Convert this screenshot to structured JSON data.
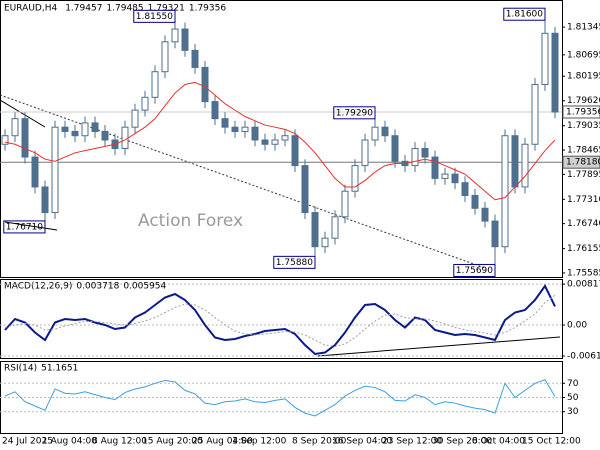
{
  "chart_data": [
    {
      "type": "candlestick",
      "title": "EURAUD,H4",
      "ohlc": [
        1.79457,
        1.79485,
        1.79321,
        1.79356
      ],
      "watermark": "Action Forex",
      "categories": [
        "24 Jul 2025",
        null,
        null,
        null,
        "1 Aug 04:00",
        null,
        null,
        null,
        null,
        "8 Aug 12:00",
        null,
        null,
        null,
        null,
        "15 Aug 20:00",
        null,
        null,
        null,
        null,
        "25 Aug 04:00",
        null,
        null,
        null,
        "1 Sep 12:00",
        null,
        null,
        null,
        null,
        null,
        "8 Sep 20:00",
        null,
        null,
        null,
        "16 Sep 04:00",
        null,
        null,
        null,
        null,
        "23 Sep 12:00",
        null,
        null,
        null,
        null,
        "30 Sep 20:00",
        null,
        null,
        null,
        "8 Oct 04:00",
        null,
        null,
        null,
        null,
        "15 Oct 12:00",
        null,
        null,
        null
      ],
      "open": [
        1.786,
        1.788,
        1.792,
        1.783,
        1.776,
        1.77,
        1.79,
        1.789,
        1.788,
        1.791,
        1.789,
        1.787,
        1.785,
        1.79,
        1.794,
        1.797,
        1.803,
        1.81,
        1.813,
        1.808,
        1.804,
        1.796,
        1.792,
        1.79,
        1.789,
        1.79,
        1.787,
        1.786,
        1.787,
        1.788,
        1.781,
        1.77,
        1.762,
        1.764,
        1.769,
        1.775,
        1.781,
        1.787,
        1.79,
        1.788,
        1.782,
        1.781,
        1.785,
        1.783,
        1.778,
        1.779,
        1.777,
        1.774,
        1.771,
        1.768,
        1.762,
        1.788,
        1.776,
        1.786,
        1.8,
        1.812
      ],
      "high": [
        1.7895,
        1.7935,
        1.7935,
        1.7845,
        1.7775,
        1.7915,
        1.7915,
        1.7905,
        1.7925,
        1.7925,
        1.7905,
        1.7885,
        1.7915,
        1.7955,
        1.7985,
        1.8045,
        1.8115,
        1.8155,
        1.8145,
        1.8095,
        1.8055,
        1.7975,
        1.7935,
        1.7915,
        1.7915,
        1.7915,
        1.7885,
        1.7885,
        1.7895,
        1.7895,
        1.7825,
        1.7715,
        1.7655,
        1.7705,
        1.7765,
        1.7825,
        1.7885,
        1.7929,
        1.7915,
        1.7895,
        1.7835,
        1.7865,
        1.7865,
        1.7845,
        1.7805,
        1.7805,
        1.7785,
        1.7755,
        1.7725,
        1.7695,
        1.7895,
        1.7895,
        1.7875,
        1.8015,
        1.816,
        1.8135
      ],
      "low": [
        1.7845,
        1.7865,
        1.7815,
        1.7745,
        1.7671,
        1.7685,
        1.7875,
        1.7865,
        1.7865,
        1.7875,
        1.7855,
        1.7835,
        1.7835,
        1.7885,
        1.7925,
        1.7955,
        1.8015,
        1.8085,
        1.8065,
        1.8025,
        1.7945,
        1.7905,
        1.7885,
        1.7875,
        1.7875,
        1.7855,
        1.7845,
        1.7845,
        1.7855,
        1.7795,
        1.7685,
        1.7588,
        1.7605,
        1.7625,
        1.7675,
        1.7735,
        1.7795,
        1.7855,
        1.7865,
        1.7805,
        1.7795,
        1.7795,
        1.7815,
        1.7765,
        1.7765,
        1.7755,
        1.7725,
        1.7695,
        1.7665,
        1.7569,
        1.7605,
        1.7745,
        1.7745,
        1.7845,
        1.7985,
        1.7921
      ],
      "close": [
        1.788,
        1.792,
        1.783,
        1.776,
        1.77,
        1.79,
        1.789,
        1.788,
        1.791,
        1.789,
        1.787,
        1.785,
        1.79,
        1.794,
        1.797,
        1.803,
        1.81,
        1.813,
        1.808,
        1.804,
        1.796,
        1.792,
        1.79,
        1.789,
        1.79,
        1.787,
        1.786,
        1.787,
        1.788,
        1.781,
        1.77,
        1.762,
        1.764,
        1.769,
        1.775,
        1.781,
        1.787,
        1.79,
        1.788,
        1.782,
        1.781,
        1.785,
        1.783,
        1.778,
        1.779,
        1.777,
        1.774,
        1.771,
        1.768,
        1.762,
        1.788,
        1.776,
        1.786,
        1.8,
        1.812,
        1.79356
      ],
      "color": "#4f6f8e",
      "ma": {
        "color": "#e8312b",
        "values": [
          1.7865,
          1.786,
          1.785,
          1.784,
          1.7825,
          1.782,
          1.783,
          1.784,
          1.7845,
          1.785,
          1.7855,
          1.786,
          1.787,
          1.7885,
          1.79,
          1.792,
          1.795,
          1.798,
          1.8,
          1.8005,
          1.7995,
          1.7975,
          1.7955,
          1.794,
          1.7925,
          1.7915,
          1.7905,
          1.79,
          1.7895,
          1.7885,
          1.7865,
          1.784,
          1.781,
          1.778,
          1.776,
          1.776,
          1.7775,
          1.7795,
          1.781,
          1.7815,
          1.7815,
          1.782,
          1.7825,
          1.782,
          1.781,
          1.78,
          1.779,
          1.777,
          1.775,
          1.773,
          1.7735,
          1.776,
          1.7785,
          1.7815,
          1.7845,
          1.787
        ]
      },
      "annotations": [
        {
          "value": 1.8155,
          "label": "1.81550"
        },
        {
          "value": 1.816,
          "label": "1.81600"
        },
        {
          "value": 1.7929,
          "label": "1.79290"
        },
        {
          "value": 1.7671,
          "label": "1.76710"
        },
        {
          "value": 1.7588,
          "label": "1.75880"
        },
        {
          "value": 1.7569,
          "label": "1.75690"
        }
      ],
      "price_lines": [
        1.79356,
        {
          "value": 1.7818,
          "label": "1.78180"
        }
      ],
      "ylim": [
        1.7549,
        1.8198
      ],
      "yticks": [
        1.81345,
        1.80695,
        1.80195,
        {
          "value": 1.7962,
          "label": "1.79620"
        },
        1.79035,
        1.78465,
        1.77895,
        {
          "value": 1.7731,
          "label": "1.77310"
        },
        {
          "value": 1.7674,
          "label": "1.76740"
        },
        1.76155,
        1.75585
      ]
    },
    {
      "type": "line",
      "title": "MACD(12,26,9)",
      "series": [
        {
          "color": "#0b1a8a",
          "style": "solid",
          "values": [
            -0.001,
            0.0012,
            0.0005,
            -0.0015,
            -0.003,
            0.0005,
            0.0012,
            0.001,
            0.0012,
            0.0005,
            0,
            -0.0008,
            -0.0005,
            0.0015,
            0.0025,
            0.004,
            0.0055,
            0.0062,
            0.005,
            0.003,
            0,
            -0.0025,
            -0.003,
            -0.0028,
            -0.0022,
            -0.0018,
            -0.0012,
            -0.001,
            -0.0008,
            -0.0018,
            -0.004,
            -0.0058,
            -0.0055,
            -0.004,
            -0.0015,
            0.0015,
            0.004,
            0.0042,
            0.003,
            0.001,
            -0.0005,
            0.0015,
            0.001,
            -0.001,
            -0.0015,
            -0.002,
            -0.0018,
            -0.002,
            -0.0025,
            -0.003,
            0.001,
            0.0025,
            0.003,
            0.005,
            0.0078,
            0.003718
          ]
        },
        {
          "color": "#a0a0a0",
          "style": "dotted",
          "values": [
            -0.0005,
            0,
            0.0003,
            0,
            -0.001,
            -0.0008,
            -0.0002,
            0.0003,
            0.0007,
            0.0007,
            0.0005,
            0.0002,
            0,
            0.0003,
            0.0008,
            0.0015,
            0.0025,
            0.0035,
            0.0042,
            0.004,
            0.003,
            0.0015,
            0,
            -0.0012,
            -0.0018,
            -0.002,
            -0.0018,
            -0.0016,
            -0.0013,
            -0.0014,
            -0.002,
            -0.003,
            -0.004,
            -0.0043,
            -0.0038,
            -0.0025,
            -0.0008,
            0.0008,
            0.002,
            0.0022,
            0.0015,
            0.0012,
            0.0012,
            0.0008,
            0.0002,
            -0.0005,
            -0.001,
            -0.0013,
            -0.0016,
            -0.002,
            -0.0015,
            -0.0005,
            0.0008,
            0.0022,
            0.0045,
            0.005954
          ]
        }
      ],
      "ylim": [
        -0.0066,
        0.0092
      ],
      "yticks": [
        0.008175,
        {
          "value": 0,
          "label": "0.00"
        },
        -0.006199
      ]
    },
    {
      "type": "line",
      "title": "RSI(14)",
      "series": [
        {
          "color": "#3d9fe0",
          "style": "solid",
          "values": [
            52,
            58,
            44,
            38,
            32,
            62,
            56,
            55,
            58,
            54,
            50,
            47,
            57,
            62,
            65,
            70,
            74,
            72,
            60,
            55,
            42,
            40,
            44,
            45,
            48,
            44,
            43,
            46,
            48,
            36,
            28,
            24,
            32,
            40,
            52,
            60,
            66,
            64,
            58,
            46,
            45,
            54,
            50,
            40,
            44,
            42,
            38,
            35,
            33,
            28,
            70,
            50,
            60,
            70,
            75,
            51.1651
          ]
        }
      ],
      "ylim": [
        0,
        100
      ],
      "yticks": [
        70,
        50,
        30
      ]
    }
  ]
}
